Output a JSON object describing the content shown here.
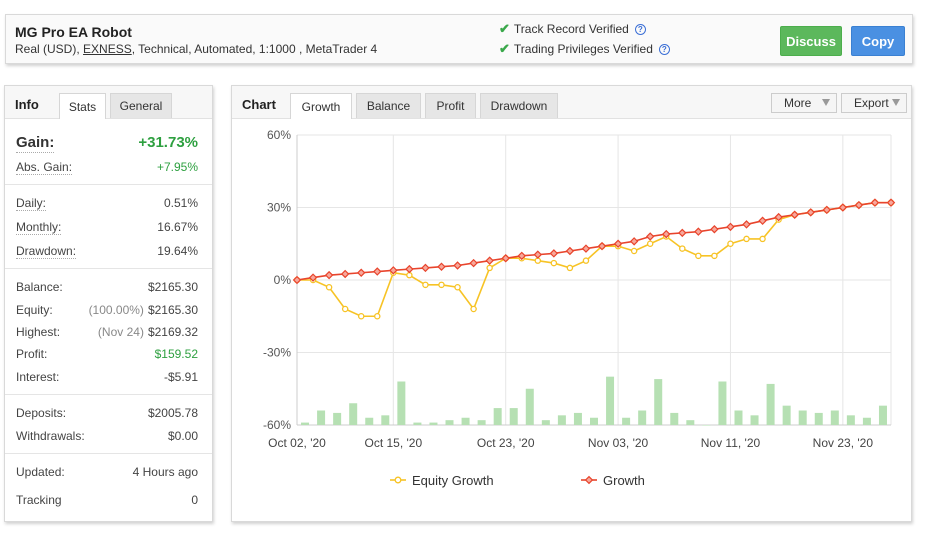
{
  "header": {
    "title": "MG Pro EA Robot",
    "account_type": "Real (USD),",
    "broker": "EXNESS",
    "details": ", Technical, Automated, 1:1000 , MetaTrader 4",
    "track_record": "Track Record Verified",
    "trading_privileges": "Trading Privileges Verified",
    "discuss_label": "Discuss",
    "copy_label": "Copy",
    "colors": {
      "discuss": "#5cb85c",
      "copy": "#4a90e2",
      "verified": "#3aa84a"
    }
  },
  "info": {
    "tabs": {
      "heading": "Info",
      "stats": "Stats",
      "general": "General"
    },
    "gain_label": "Gain:",
    "gain": "+31.73%",
    "abs_gain_label": "Abs. Gain:",
    "abs_gain": "+7.95%",
    "daily_label": "Daily:",
    "daily": "0.51%",
    "monthly_label": "Monthly:",
    "monthly": "16.67%",
    "drawdown_label": "Drawdown:",
    "drawdown": "19.64%",
    "balance_label": "Balance:",
    "balance": "$2165.30",
    "equity_label": "Equity:",
    "equity_pct": "(100.00%)",
    "equity": "$2165.30",
    "highest_label": "Highest:",
    "highest_date": "(Nov 24)",
    "highest": "$2169.32",
    "profit_label": "Profit:",
    "profit": "$159.52",
    "interest_label": "Interest:",
    "interest": "-$5.91",
    "deposits_label": "Deposits:",
    "deposits": "$2005.78",
    "withdrawals_label": "Withdrawals:",
    "withdrawals": "$0.00",
    "updated_label": "Updated:",
    "updated": "4 Hours ago",
    "tracking_label": "Tracking",
    "tracking": "0"
  },
  "chart_panel": {
    "heading": "Chart",
    "tabs": [
      "Growth",
      "Balance",
      "Profit",
      "Drawdown"
    ],
    "active_tab": "Growth",
    "more_label": "More",
    "export_label": "Export"
  },
  "chart_data": {
    "type": "line",
    "ylim": [
      -60,
      60
    ],
    "yticks": [
      60,
      30,
      0,
      -30,
      -60
    ],
    "ytick_labels": [
      "60%",
      "30%",
      "0%",
      "-30%",
      "-60%"
    ],
    "x_tick_labels": [
      "Oct 02, '20",
      "Oct 15, '20",
      "Oct 23, '20",
      "Nov 03, '20",
      "Nov 11, '20",
      "Nov 23, '20"
    ],
    "x_tick_index": [
      0,
      6,
      13,
      20,
      27,
      34
    ],
    "grid": true,
    "legend_position": "bottom",
    "series": [
      {
        "name": "Equity Growth",
        "color": "#f7c325",
        "values": [
          0,
          0,
          -3,
          -12,
          -15,
          -15,
          3,
          2,
          -2,
          -2,
          -3,
          -12,
          5,
          9,
          9,
          8,
          7,
          5,
          8,
          14,
          14,
          12,
          15,
          18,
          13,
          10,
          10,
          15,
          17,
          17,
          25,
          27,
          28,
          29,
          30,
          31,
          32,
          32
        ]
      },
      {
        "name": "Growth",
        "color": "#e8442c",
        "values": [
          0,
          1,
          2,
          2.5,
          3,
          3.5,
          4,
          4.5,
          5,
          5.5,
          6,
          7,
          8,
          9,
          10,
          10.5,
          11,
          12,
          13,
          14,
          15,
          16,
          18,
          19,
          19.5,
          20,
          21,
          22,
          23,
          24.5,
          26,
          27,
          28,
          29,
          30,
          31,
          32,
          32
        ]
      },
      {
        "name": "Bars",
        "type": "bar",
        "color": "#b6e0b3",
        "values": [
          -59,
          -54,
          -55,
          -51,
          -57,
          -56,
          -42,
          -59,
          -59,
          -58,
          -57,
          -58,
          -53,
          -53,
          -45,
          -58,
          -56,
          -55,
          -57,
          -40,
          -57,
          -54,
          -41,
          -55,
          -58,
          -60,
          -42,
          -54,
          -56,
          -43,
          -52,
          -54,
          -55,
          -54,
          -56,
          -57,
          -52
        ]
      }
    ],
    "legend": [
      "Equity Growth",
      "Growth"
    ]
  }
}
